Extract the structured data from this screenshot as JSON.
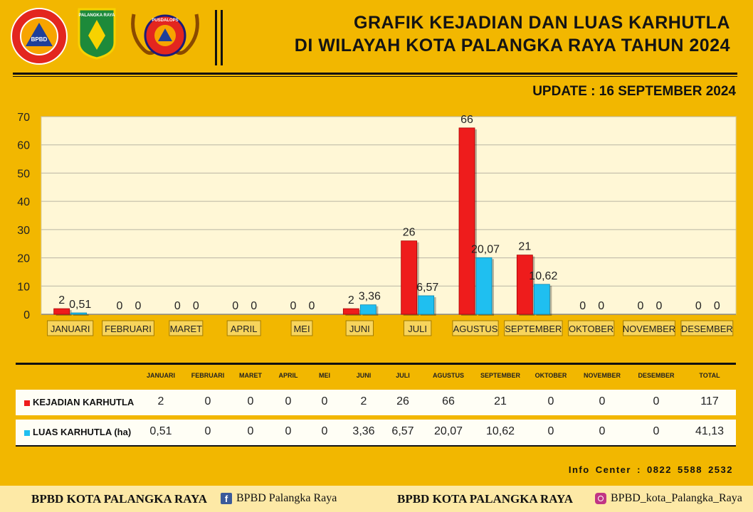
{
  "header": {
    "title_line1": "GRAFIK KEJADIAN DAN LUAS KARHUTLA",
    "title_line2": "DI WILAYAH KOTA PALANGKA RAYA TAHUN 2024",
    "update": "UPDATE : 16 SEPTEMBER 2024",
    "logos": {
      "bpbd": "BPBD",
      "palangka": "PALANGKA RAYA",
      "pusdalops": "PUSDALOPS"
    }
  },
  "chart_data": {
    "type": "bar",
    "categories": [
      "JANUARI",
      "FEBRUARI",
      "MARET",
      "APRIL",
      "MEI",
      "JUNI",
      "JULI",
      "AGUSTUS",
      "SEPTEMBER",
      "OKTOBER",
      "NOVEMBER",
      "DESEMBER"
    ],
    "series": [
      {
        "name": "KEJADIAN KARHUTLA",
        "values": [
          2,
          0,
          0,
          0,
          0,
          2,
          26,
          66,
          21,
          0,
          0,
          0
        ],
        "labels": [
          "2",
          "0",
          "0",
          "0",
          "0",
          "2",
          "26",
          "66",
          "21",
          "0",
          "0",
          "0"
        ],
        "color": "#ee1c1c"
      },
      {
        "name": "LUAS KARHUTLA (ha)",
        "values": [
          0.51,
          0,
          0,
          0,
          0,
          3.36,
          6.57,
          20.07,
          10.62,
          0,
          0,
          0
        ],
        "labels": [
          "0,51",
          "0",
          "0",
          "0",
          "0",
          "3,36",
          "6,57",
          "20,07",
          "10,62",
          "0",
          "0",
          "0"
        ],
        "color": "#1fbff0"
      }
    ],
    "ylim": [
      0,
      70
    ],
    "yticks": [
      "0",
      "10",
      "20",
      "30",
      "40",
      "50",
      "60",
      "70"
    ],
    "grid": true,
    "plot_background": "#fff7d6"
  },
  "table": {
    "headers": [
      "JANUARI",
      "FEBRUARI",
      "MARET",
      "APRIL",
      "MEI",
      "JUNI",
      "JULI",
      "AGUSTUS",
      "SEPTEMBER",
      "OKTOBER",
      "NOVEMBER",
      "DESEMBER",
      "TOTAL"
    ],
    "rows": [
      {
        "label": "KEJADIAN KARHUTLA",
        "color": "#ee1c1c",
        "values": [
          "2",
          "0",
          "0",
          "0",
          "0",
          "2",
          "26",
          "66",
          "21",
          "0",
          "0",
          "0",
          "117"
        ]
      },
      {
        "label": "LUAS KARHUTLA (ha)",
        "color": "#1fbff0",
        "values": [
          "0,51",
          "0",
          "0",
          "0",
          "0",
          "3,36",
          "6,57",
          "20,07",
          "10,62",
          "0",
          "0",
          "0",
          "41,13"
        ]
      }
    ]
  },
  "info_center": "Info Center : 0822 5588 2532",
  "footer": {
    "left": "BPBD KOTA PALANGKA RAYA",
    "facebook": "BPBD Palangka Raya",
    "center": "BPBD KOTA PALANGKA RAYA",
    "instagram": "BPBD_kota_Palangka_Raya",
    "fb_glyph": "f"
  },
  "colors": {
    "background": "#f2b700",
    "kejadian": "#ee1c1c",
    "luas": "#1fbff0"
  }
}
